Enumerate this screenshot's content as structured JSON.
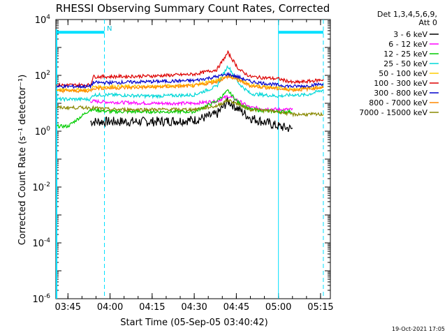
{
  "chart_data": {
    "type": "line",
    "title": "RHESSI Observing Summary Count Rates, Corrected",
    "xlabel": "Start Time (05-Sep-05 03:40:42)",
    "ylabel": "Corrected Count Rate (s⁻¹ detector⁻¹)",
    "yscale": "log",
    "xlim": [
      "03:40:42",
      "05:18:30"
    ],
    "ylim": [
      1e-06,
      10000
    ],
    "x_ticks": [
      "03:45",
      "04:00",
      "04:15",
      "04:30",
      "04:45",
      "05:00",
      "05:15"
    ],
    "y_ticks": [
      {
        "value": 1e-06,
        "base": "10",
        "exp": "-6"
      },
      {
        "value": 0.0001,
        "base": "10",
        "exp": "-4"
      },
      {
        "value": 0.01,
        "base": "10",
        "exp": "-2"
      },
      {
        "value": 1,
        "base": "10",
        "exp": "0"
      },
      {
        "value": 100,
        "base": "10",
        "exp": "2"
      },
      {
        "value": 10000,
        "base": "10",
        "exp": "4"
      }
    ],
    "legend_header": [
      "Det 1,3,4,5,6,9,",
      "Att 0"
    ],
    "legend_position": "right",
    "annotation": "N",
    "timestamp": "19-Oct-2021 17:05",
    "series": [
      {
        "name": "3 - 6 keV",
        "color": "#000000",
        "x": [
          "03:53",
          "04:00",
          "04:15",
          "04:30",
          "04:38",
          "04:42",
          "04:46",
          "04:50",
          "05:00",
          "05:05"
        ],
        "values": [
          2.2,
          2.2,
          2.2,
          2.5,
          4,
          12,
          6,
          3,
          1.5,
          1.2
        ]
      },
      {
        "name": "6 - 12 keV",
        "color": "#ff00ff",
        "x": [
          "03:53",
          "04:00",
          "04:15",
          "04:30",
          "04:38",
          "04:42",
          "04:46",
          "04:50",
          "05:00",
          "05:05"
        ],
        "values": [
          12,
          11,
          10,
          10,
          12,
          18,
          12,
          7,
          6,
          6
        ]
      },
      {
        "name": "12 - 25 keV",
        "color": "#00cc00",
        "x": [
          "03:41",
          "03:45",
          "03:53",
          "04:00",
          "04:15",
          "04:30",
          "04:38",
          "04:42",
          "04:46",
          "04:50",
          "05:00",
          "05:05"
        ],
        "values": [
          1.5,
          1.5,
          6,
          5,
          5,
          5,
          12,
          28,
          10,
          6,
          5,
          5
        ]
      },
      {
        "name": "25 - 50 keV",
        "color": "#00d8d8",
        "x": [
          "03:41",
          "03:53",
          "03:54",
          "04:00",
          "04:15",
          "04:30",
          "04:38",
          "04:42",
          "04:46",
          "04:50",
          "05:00",
          "05:05",
          "05:10",
          "05:16"
        ],
        "values": [
          14,
          14,
          20,
          20,
          18,
          20,
          40,
          220,
          50,
          22,
          18,
          20,
          20,
          30
        ]
      },
      {
        "name": "50 - 100 keV",
        "color": "#ffcc00",
        "x": [
          "03:41",
          "03:53",
          "03:54",
          "04:00",
          "04:15",
          "04:30",
          "04:38",
          "04:42",
          "04:46",
          "04:50",
          "05:00",
          "05:05",
          "05:10",
          "05:16"
        ],
        "values": [
          30,
          30,
          38,
          40,
          40,
          45,
          65,
          100,
          70,
          45,
          35,
          32,
          35,
          40
        ]
      },
      {
        "name": "100 - 300 keV",
        "color": "#dd0000",
        "x": [
          "03:41",
          "03:53",
          "03:54",
          "04:00",
          "04:15",
          "04:30",
          "04:38",
          "04:42",
          "04:46",
          "04:50",
          "05:00",
          "05:04",
          "05:05",
          "05:10",
          "05:16"
        ],
        "values": [
          45,
          45,
          90,
          90,
          95,
          110,
          160,
          650,
          160,
          90,
          75,
          60,
          55,
          60,
          70
        ]
      },
      {
        "name": "300 - 800 keV",
        "color": "#0000cc",
        "x": [
          "03:41",
          "03:53",
          "03:54",
          "04:00",
          "04:15",
          "04:30",
          "04:38",
          "04:42",
          "04:46",
          "04:50",
          "05:00",
          "05:05",
          "05:10",
          "05:16"
        ],
        "values": [
          40,
          40,
          55,
          55,
          60,
          65,
          90,
          110,
          85,
          60,
          45,
          40,
          42,
          50
        ]
      },
      {
        "name": "800 - 7000 keV",
        "color": "#ff8800",
        "x": [
          "03:41",
          "03:53",
          "03:54",
          "04:00",
          "04:15",
          "04:30",
          "04:38",
          "04:42",
          "04:46",
          "04:50",
          "05:00",
          "05:05",
          "05:10",
          "05:16"
        ],
        "values": [
          28,
          28,
          35,
          35,
          38,
          42,
          60,
          90,
          65,
          42,
          33,
          30,
          32,
          38
        ]
      },
      {
        "name": "7000 - 15000 keV",
        "color": "#888800",
        "x": [
          "03:41",
          "03:53",
          "04:00",
          "04:15",
          "04:30",
          "04:38",
          "04:42",
          "04:46",
          "04:50",
          "05:00",
          "05:05",
          "05:16"
        ],
        "values": [
          7,
          7,
          6,
          6,
          6,
          8,
          13,
          9,
          6,
          5,
          4,
          4
        ]
      }
    ],
    "markers": [
      {
        "label": "saa_bar_1",
        "color": "#00e0ff",
        "x_start": "03:40:42",
        "x_end": "03:58",
        "y": 3500
      },
      {
        "label": "saa_bar_2",
        "color": "#00e0ff",
        "x_start": "05:00",
        "x_end": "05:16",
        "y": 3500
      }
    ],
    "vlines": [
      {
        "x": "03:58",
        "style": "dashed",
        "color": "#00e0ff"
      },
      {
        "x": "05:00",
        "style": "solid",
        "color": "#00e0ff"
      },
      {
        "x": "05:16",
        "style": "dashed",
        "color": "#00e0ff"
      }
    ]
  }
}
